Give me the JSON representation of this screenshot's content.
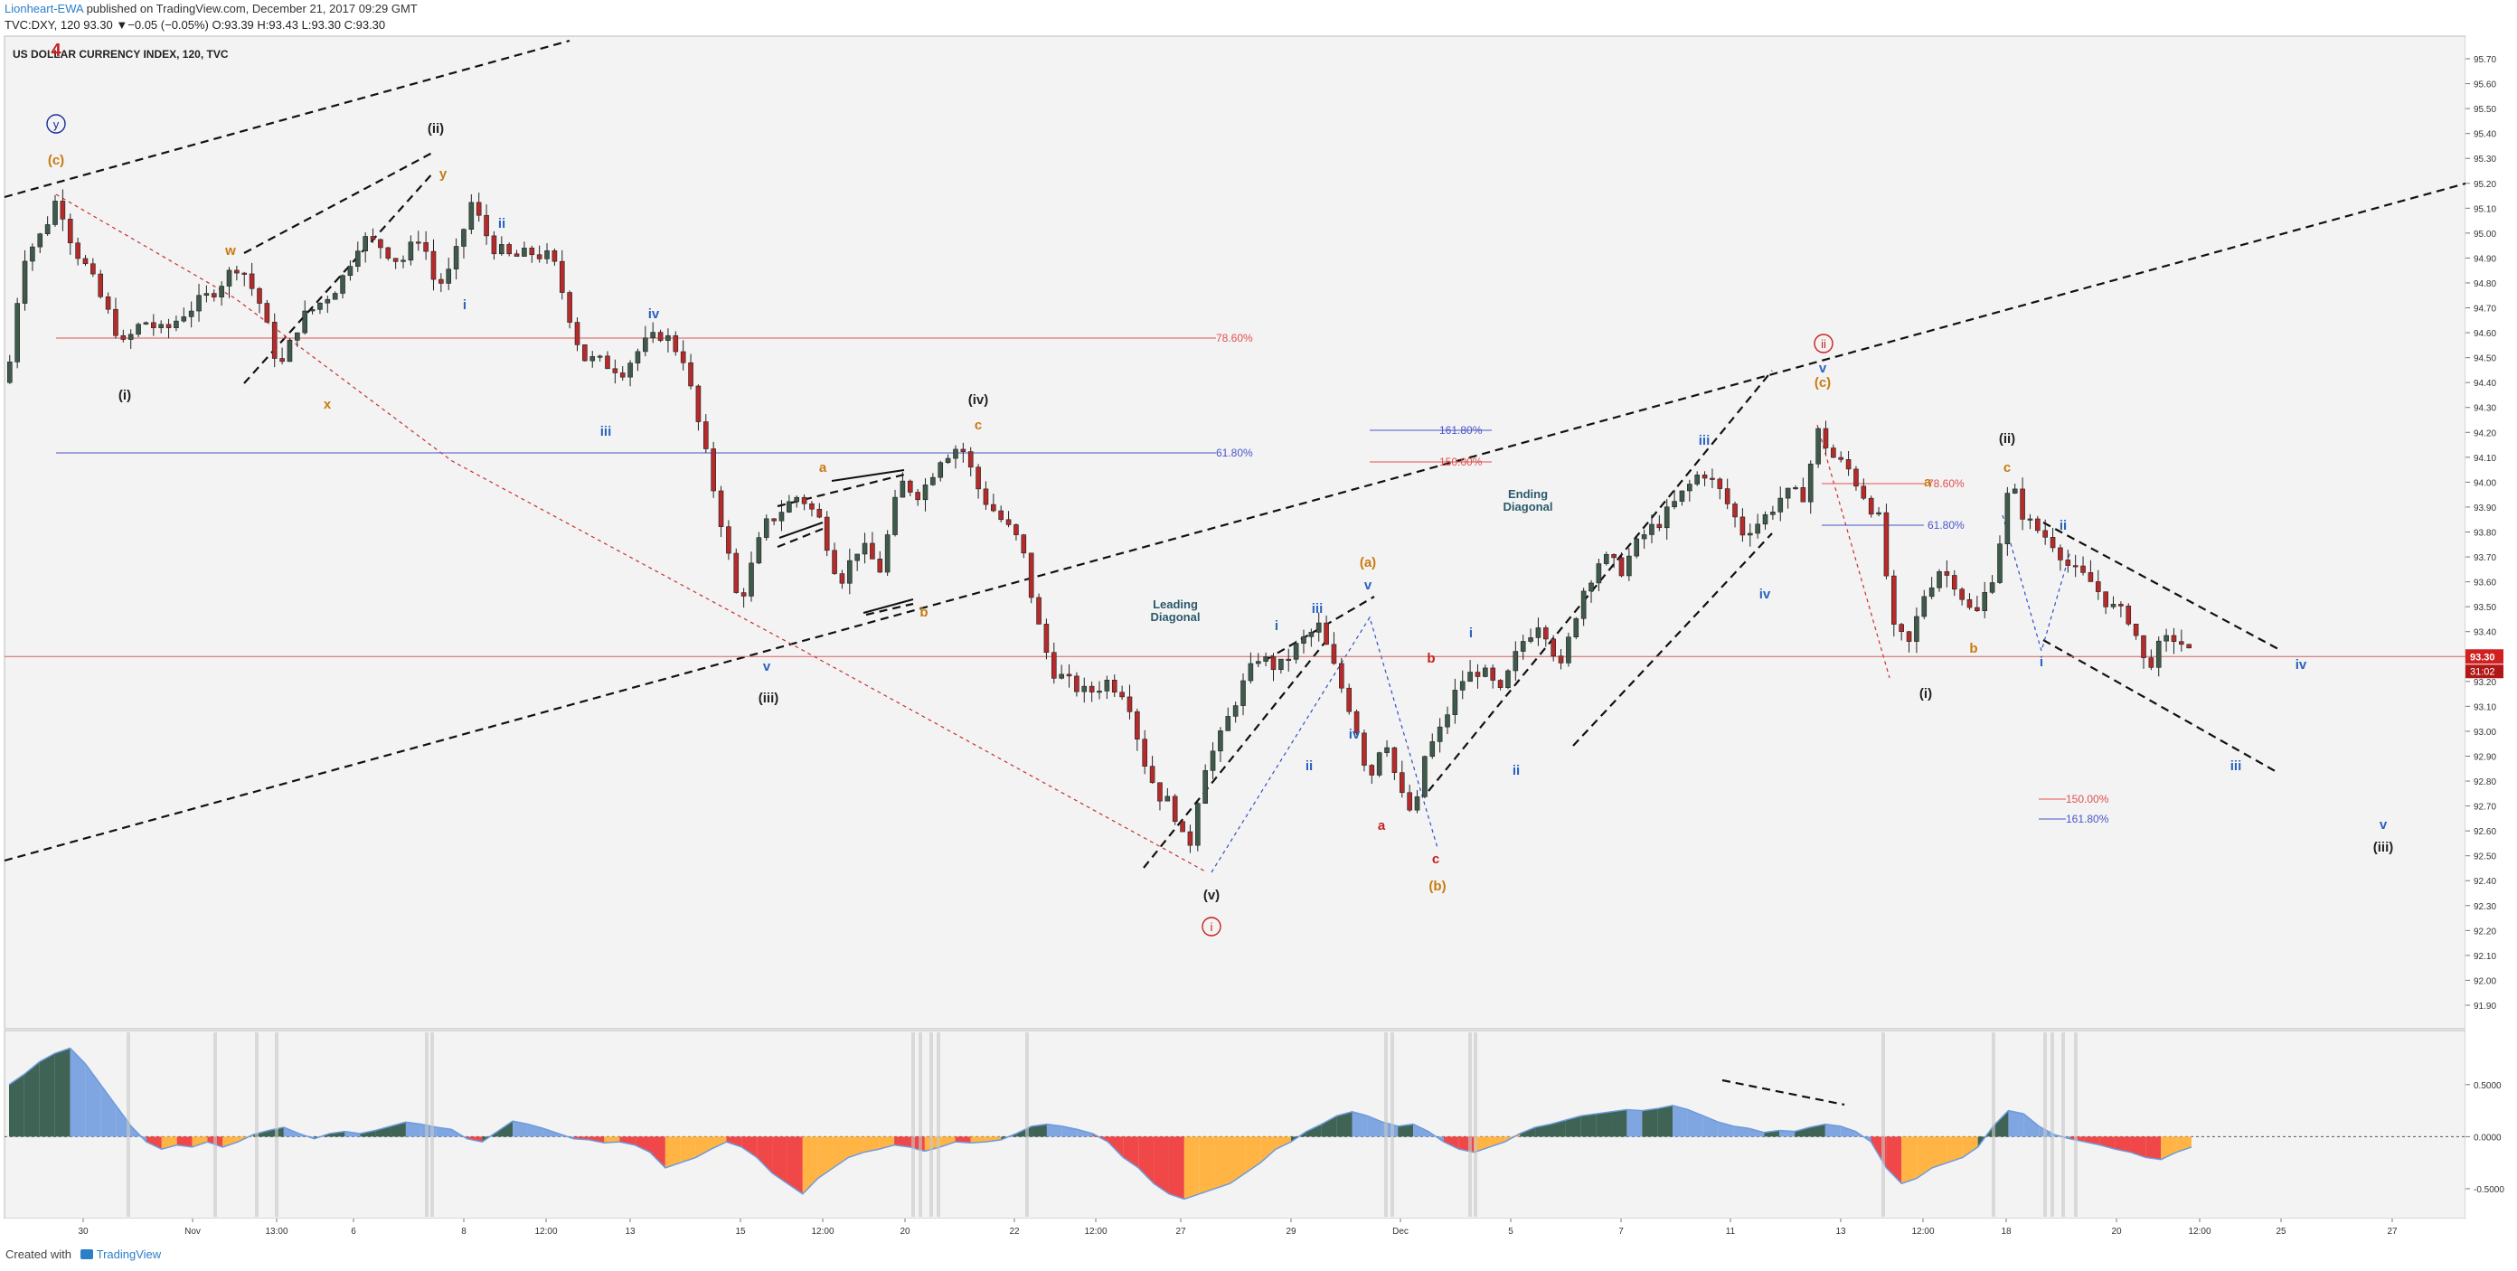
{
  "header": {
    "author": "Lionheart-EWA",
    "published_text": "published on TradingView.com, December 21, 2017 09:29 GMT",
    "symbol_text": "TVC:DXY, 120",
    "last_close": "93.30",
    "change_text": "−0.05 (−0.05%)",
    "o_label": "O:",
    "o_value": "93.39",
    "h_label": "H:",
    "h_value": "93.43",
    "l_label": "L:",
    "l_value": "93.30",
    "c_label": "C:",
    "c_value": "93.30"
  },
  "chart_title": "US DOLLAR CURRENCY INDEX, 120, TVC",
  "footer": {
    "created_with": "Created with",
    "brand": "TradingView"
  },
  "colors": {
    "bull_candle": "#3e5a4a",
    "bear_candle": "#b52a2a",
    "fib_red": "#e05050",
    "fib_blue": "#4a56c8",
    "wave_orange": "#c87a10",
    "wave_blue": "#2a62c0",
    "wave_red": "#c82020",
    "wave_black": "#222222",
    "osc_dark": "#3f6455",
    "osc_light_blue": "#7fa6e0",
    "osc_red": "#f04848",
    "osc_orange": "#ffb444",
    "price_tag": "#d02020"
  },
  "chart_data": {
    "type": "candlestick",
    "title": "US DOLLAR CURRENCY INDEX, 120, TVC",
    "price_axis": {
      "ticks": [
        "95.70",
        "95.60",
        "95.50",
        "95.40",
        "95.30",
        "95.20",
        "95.10",
        "95.00",
        "94.90",
        "94.80",
        "94.70",
        "94.60",
        "94.50",
        "94.40",
        "94.30",
        "94.20",
        "94.10",
        "94.00",
        "93.90",
        "93.80",
        "93.70",
        "93.60",
        "93.50",
        "93.40",
        "93.30",
        "93.20",
        "93.10",
        "93.00",
        "92.90",
        "92.80",
        "92.70",
        "92.60",
        "92.50",
        "92.40",
        "92.30",
        "92.20",
        "92.10",
        "92.00",
        "91.90"
      ],
      "range": [
        91.9,
        95.75
      ]
    },
    "time_axis": {
      "ticks": [
        "30",
        "Nov",
        "13:00",
        "6",
        "8",
        "12:00",
        "13",
        "15",
        "12:00",
        "20",
        "22",
        "12:00",
        "27",
        "29",
        "Dec",
        "5",
        "7",
        "11",
        "13",
        "12:00",
        "18",
        "20",
        "12:00",
        "25",
        "27"
      ]
    },
    "last_price_label": "93.30",
    "countdown_label": "31:02",
    "series_path": [
      [
        0,
        94.4
      ],
      [
        6,
        94.9
      ],
      [
        14,
        95.0
      ],
      [
        20,
        95.15
      ],
      [
        26,
        94.95
      ],
      [
        32,
        94.85
      ],
      [
        38,
        94.72
      ],
      [
        46,
        94.55
      ],
      [
        54,
        94.65
      ],
      [
        62,
        94.6
      ],
      [
        70,
        94.68
      ],
      [
        80,
        94.75
      ],
      [
        92,
        94.88
      ],
      [
        100,
        94.72
      ],
      [
        108,
        94.45
      ],
      [
        116,
        94.65
      ],
      [
        124,
        94.72
      ],
      [
        132,
        94.8
      ],
      [
        140,
        94.98
      ],
      [
        148,
        94.95
      ],
      [
        156,
        94.88
      ],
      [
        164,
        95.0
      ],
      [
        170,
        94.78
      ],
      [
        176,
        94.85
      ],
      [
        184,
        95.12
      ],
      [
        192,
        94.95
      ],
      [
        200,
        94.9
      ],
      [
        208,
        94.92
      ],
      [
        216,
        94.9
      ],
      [
        222,
        94.7
      ],
      [
        228,
        94.5
      ],
      [
        236,
        94.48
      ],
      [
        244,
        94.45
      ],
      [
        252,
        94.55
      ],
      [
        260,
        94.6
      ],
      [
        268,
        94.5
      ],
      [
        276,
        94.15
      ],
      [
        284,
        93.8
      ],
      [
        290,
        93.5
      ],
      [
        300,
        93.82
      ],
      [
        306,
        93.88
      ],
      [
        314,
        93.95
      ],
      [
        322,
        93.85
      ],
      [
        330,
        93.6
      ],
      [
        338,
        93.75
      ],
      [
        346,
        93.65
      ],
      [
        354,
        94.0
      ],
      [
        362,
        93.95
      ],
      [
        370,
        94.1
      ],
      [
        378,
        94.15
      ],
      [
        386,
        93.95
      ],
      [
        394,
        93.85
      ],
      [
        402,
        93.75
      ],
      [
        408,
        93.45
      ],
      [
        414,
        93.25
      ],
      [
        420,
        93.2
      ],
      [
        428,
        93.15
      ],
      [
        436,
        93.2
      ],
      [
        444,
        93.15
      ],
      [
        450,
        92.9
      ],
      [
        456,
        92.75
      ],
      [
        462,
        92.7
      ],
      [
        468,
        92.5
      ],
      [
        474,
        92.85
      ],
      [
        480,
        92.95
      ],
      [
        488,
        93.15
      ],
      [
        496,
        93.3
      ],
      [
        504,
        93.25
      ],
      [
        512,
        93.35
      ],
      [
        520,
        93.42
      ],
      [
        528,
        93.2
      ],
      [
        534,
        93.05
      ],
      [
        540,
        92.8
      ],
      [
        546,
        93.0
      ],
      [
        552,
        92.75
      ],
      [
        558,
        92.65
      ],
      [
        562,
        92.9
      ],
      [
        568,
        93.0
      ],
      [
        576,
        93.2
      ],
      [
        584,
        93.25
      ],
      [
        592,
        93.15
      ],
      [
        600,
        93.35
      ],
      [
        608,
        93.45
      ],
      [
        616,
        93.25
      ],
      [
        624,
        93.55
      ],
      [
        632,
        93.7
      ],
      [
        640,
        93.65
      ],
      [
        648,
        93.78
      ],
      [
        656,
        93.85
      ],
      [
        664,
        93.95
      ],
      [
        672,
        94.05
      ],
      [
        680,
        93.95
      ],
      [
        688,
        93.8
      ],
      [
        696,
        93.85
      ],
      [
        704,
        93.95
      ],
      [
        712,
        93.95
      ],
      [
        718,
        94.2
      ],
      [
        724,
        94.1
      ],
      [
        730,
        94.05
      ],
      [
        736,
        93.95
      ],
      [
        742,
        93.85
      ],
      [
        748,
        93.4
      ],
      [
        754,
        93.35
      ],
      [
        760,
        93.55
      ],
      [
        766,
        93.65
      ],
      [
        772,
        93.6
      ],
      [
        780,
        93.45
      ],
      [
        788,
        93.65
      ],
      [
        794,
        94.0
      ],
      [
        800,
        93.85
      ],
      [
        806,
        93.8
      ],
      [
        812,
        93.75
      ],
      [
        818,
        93.65
      ],
      [
        826,
        93.6
      ],
      [
        834,
        93.5
      ],
      [
        842,
        93.45
      ],
      [
        848,
        93.25
      ],
      [
        854,
        93.35
      ],
      [
        860,
        93.38
      ],
      [
        866,
        93.3
      ]
    ],
    "fib_levels": [
      {
        "label": "78.60%",
        "color": "red"
      },
      {
        "label": "61.80%",
        "color": "blue"
      },
      {
        "label": "161.80%",
        "color": "blue"
      },
      {
        "label": "150.00%",
        "color": "red"
      },
      {
        "label": "78.60%",
        "color": "red"
      },
      {
        "label": "61.80%",
        "color": "blue"
      },
      {
        "label": "150.00%",
        "color": "red"
      },
      {
        "label": "161.80%",
        "color": "blue"
      }
    ],
    "wave_labels": [
      {
        "t": "4",
        "c": "red"
      },
      {
        "t": "y",
        "c": "blue_circle"
      },
      {
        "t": "(c)",
        "c": "orange"
      },
      {
        "t": "(i)",
        "c": "black"
      },
      {
        "t": "w",
        "c": "orange"
      },
      {
        "t": "x",
        "c": "orange"
      },
      {
        "t": "y",
        "c": "orange"
      },
      {
        "t": "(ii)",
        "c": "black"
      },
      {
        "t": "i",
        "c": "blue"
      },
      {
        "t": "ii",
        "c": "blue"
      },
      {
        "t": "iii",
        "c": "blue"
      },
      {
        "t": "iv",
        "c": "blue"
      },
      {
        "t": "v",
        "c": "blue"
      },
      {
        "t": "(iii)",
        "c": "black"
      },
      {
        "t": "a",
        "c": "orange"
      },
      {
        "t": "b",
        "c": "orange"
      },
      {
        "t": "c",
        "c": "orange"
      },
      {
        "t": "(iv)",
        "c": "black"
      },
      {
        "t": "(v)",
        "c": "black"
      },
      {
        "t": "i",
        "c": "red_circle"
      },
      {
        "t": "i",
        "c": "blue"
      },
      {
        "t": "iii",
        "c": "blue"
      },
      {
        "t": "ii",
        "c": "blue"
      },
      {
        "t": "iv",
        "c": "blue"
      },
      {
        "t": "v",
        "c": "blue"
      },
      {
        "t": "(a)",
        "c": "orange"
      },
      {
        "t": "a",
        "c": "red"
      },
      {
        "t": "b",
        "c": "red"
      },
      {
        "t": "c",
        "c": "red"
      },
      {
        "t": "(b)",
        "c": "orange"
      },
      {
        "t": "i",
        "c": "blue"
      },
      {
        "t": "ii",
        "c": "blue"
      },
      {
        "t": "iii",
        "c": "blue"
      },
      {
        "t": "iv",
        "c": "blue"
      },
      {
        "t": "v",
        "c": "blue"
      },
      {
        "t": "(c)",
        "c": "orange"
      },
      {
        "t": "ii",
        "c": "red_circle"
      },
      {
        "t": "a",
        "c": "orange"
      },
      {
        "t": "b",
        "c": "orange"
      },
      {
        "t": "c",
        "c": "orange"
      },
      {
        "t": "(i)",
        "c": "black"
      },
      {
        "t": "(ii)",
        "c": "black"
      },
      {
        "t": "i",
        "c": "blue"
      },
      {
        "t": "ii",
        "c": "blue"
      },
      {
        "t": "iii",
        "c": "blue"
      },
      {
        "t": "iv",
        "c": "blue"
      },
      {
        "t": "v",
        "c": "blue"
      },
      {
        "t": "(iii)",
        "c": "black"
      }
    ],
    "annotations": [
      "Leading\nDiagonal",
      "Ending\nDiagonal"
    ],
    "oscillator": {
      "ticks": [
        "0.5000",
        "0.0000",
        "-0.5000"
      ],
      "range": [
        -0.7,
        0.95
      ],
      "values": [
        0.5,
        0.6,
        0.72,
        0.8,
        0.85,
        0.7,
        0.5,
        0.3,
        0.1,
        -0.05,
        -0.12,
        -0.08,
        -0.1,
        -0.05,
        -0.1,
        -0.05,
        0.02,
        0.06,
        0.09,
        0.03,
        -0.02,
        0.03,
        0.05,
        0.03,
        0.06,
        0.1,
        0.14,
        0.12,
        0.09,
        0.07,
        -0.02,
        -0.05,
        0.05,
        0.15,
        0.12,
        0.08,
        0.03,
        -0.02,
        -0.03,
        -0.06,
        -0.05,
        -0.08,
        -0.15,
        -0.3,
        -0.25,
        -0.2,
        -0.12,
        -0.05,
        -0.1,
        -0.2,
        -0.35,
        -0.45,
        -0.55,
        -0.4,
        -0.3,
        -0.2,
        -0.15,
        -0.12,
        -0.08,
        -0.1,
        -0.14,
        -0.1,
        -0.05,
        -0.06,
        -0.05,
        -0.03,
        0.03,
        0.1,
        0.12,
        0.1,
        0.07,
        0.03,
        -0.05,
        -0.2,
        -0.3,
        -0.45,
        -0.55,
        -0.6,
        -0.55,
        -0.5,
        -0.45,
        -0.35,
        -0.25,
        -0.12,
        -0.05,
        0.05,
        0.12,
        0.2,
        0.24,
        0.2,
        0.14,
        0.1,
        0.12,
        0.05,
        -0.05,
        -0.12,
        -0.15,
        -0.1,
        -0.05,
        0.03,
        0.09,
        0.12,
        0.16,
        0.2,
        0.22,
        0.24,
        0.26,
        0.25,
        0.27,
        0.3,
        0.26,
        0.2,
        0.14,
        0.1,
        0.08,
        0.04,
        0.06,
        0.05,
        0.09,
        0.12,
        0.1,
        0.05,
        -0.05,
        -0.3,
        -0.45,
        -0.4,
        -0.3,
        -0.25,
        -0.2,
        -0.1,
        0.1,
        0.25,
        0.22,
        0.1,
        0.02,
        -0.02,
        -0.05,
        -0.08,
        -0.12,
        -0.15,
        -0.2,
        -0.22,
        -0.15,
        -0.1
      ]
    }
  }
}
